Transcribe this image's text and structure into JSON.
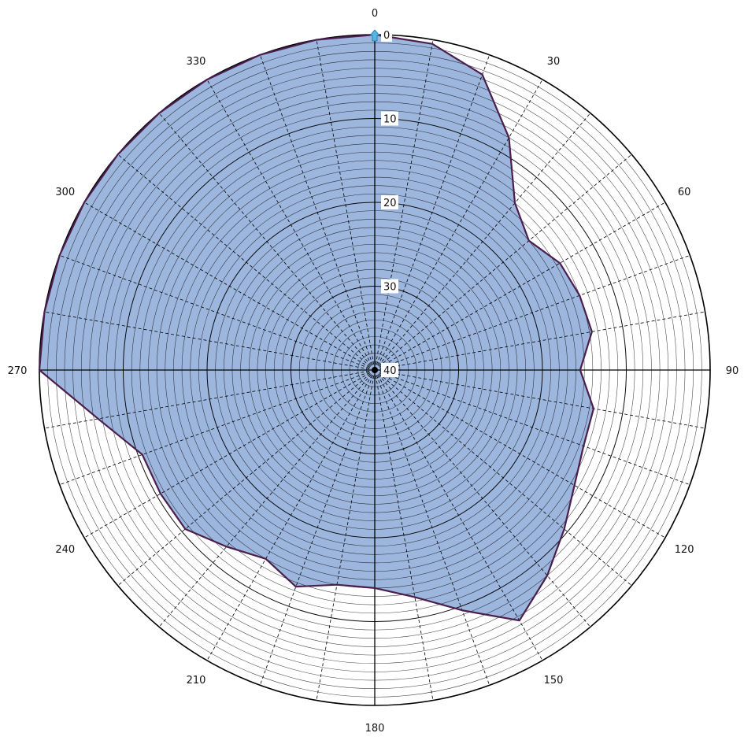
{
  "chart_data": {
    "type": "polar-area",
    "angle_unit": "degrees",
    "angle_direction": "clockwise",
    "angle_zero": "top",
    "radial_axis": {
      "min": 0,
      "max": 40,
      "reversed": true,
      "tick_labels": [
        "0",
        "10",
        "20",
        "30",
        "40"
      ],
      "minor_step": 1,
      "major_step": 10
    },
    "angle_tick_labels": [
      "0",
      "30",
      "60",
      "90",
      "120",
      "150",
      "180",
      "210",
      "240",
      "270",
      "300",
      "330"
    ],
    "spoke_step_deg": 10,
    "series": [
      {
        "points": [
          {
            "angle": 0,
            "value": 0
          },
          {
            "angle": 10,
            "value": 0.5
          },
          {
            "angle": 20,
            "value": 2.5
          },
          {
            "angle": 30,
            "value": 8
          },
          {
            "angle": 40,
            "value": 14
          },
          {
            "angle": 50,
            "value": 16
          },
          {
            "angle": 60,
            "value": 14.5
          },
          {
            "angle": 70,
            "value": 14
          },
          {
            "angle": 80,
            "value": 13.7
          },
          {
            "angle": 90,
            "value": 15.5
          },
          {
            "angle": 100,
            "value": 13.5
          },
          {
            "angle": 110,
            "value": 13.5
          },
          {
            "angle": 120,
            "value": 12.5
          },
          {
            "angle": 130,
            "value": 10.5
          },
          {
            "angle": 140,
            "value": 8
          },
          {
            "angle": 150,
            "value": 5.5
          },
          {
            "angle": 160,
            "value": 9.5
          },
          {
            "angle": 170,
            "value": 12.5
          },
          {
            "angle": 180,
            "value": 14
          },
          {
            "angle": 190,
            "value": 14
          },
          {
            "angle": 200,
            "value": 12.5
          },
          {
            "angle": 210,
            "value": 14
          },
          {
            "angle": 220,
            "value": 12.5
          },
          {
            "angle": 230,
            "value": 10.5
          },
          {
            "angle": 240,
            "value": 10.5
          },
          {
            "angle": 250,
            "value": 10.5
          },
          {
            "angle": 260,
            "value": 6.5
          },
          {
            "angle": 270,
            "value": 0
          },
          {
            "angle": 280,
            "value": 0
          },
          {
            "angle": 290,
            "value": 0
          },
          {
            "angle": 300,
            "value": 0
          },
          {
            "angle": 310,
            "value": 0
          },
          {
            "angle": 320,
            "value": 0
          },
          {
            "angle": 330,
            "value": 0
          },
          {
            "angle": 340,
            "value": 0
          },
          {
            "angle": 350,
            "value": 0
          }
        ]
      }
    ],
    "colors": {
      "fill": "#9db6dd",
      "outline": "#4a1e4e",
      "grid_minor": "#000000",
      "spoke_dash": "#000000",
      "marker": "#52b7e6"
    },
    "grid": true,
    "legend": "none"
  }
}
